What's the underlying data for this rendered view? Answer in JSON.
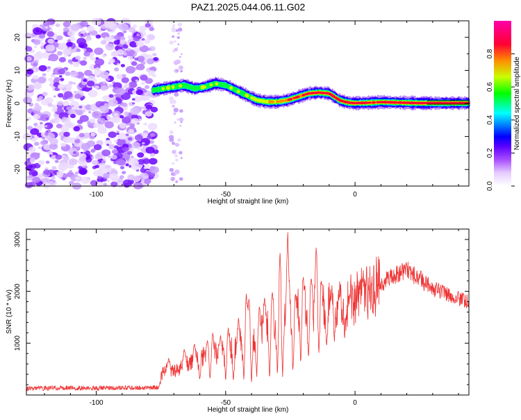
{
  "title": "PAZ1.2025.044.06.11.G02",
  "chart_data": [
    {
      "type": "heatmap",
      "xlabel": "Height of straight line (km)",
      "ylabel": "Frequency (Hz)",
      "xlim": [
        -127,
        44
      ],
      "ylim": [
        -25,
        25
      ],
      "xticks": [
        -100,
        -50,
        0
      ],
      "yticks": [
        -20,
        -10,
        0,
        10,
        20
      ],
      "colorbar": {
        "label": "Normalized spectral amplitude",
        "range": [
          0,
          1
        ],
        "ticks": [
          "0.0",
          "0.2",
          "0.4",
          "0.6",
          "0.8"
        ]
      },
      "colormap": [
        "#ffffff",
        "#e8d0ff",
        "#b066ff",
        "#7a00ff",
        "#0000ff",
        "#00e5ff",
        "#00ff00",
        "#c8ff00",
        "#ff8c00",
        "#ff0033",
        "#ff00aa"
      ],
      "noise_region_x": [
        -127,
        -77
      ],
      "ridge": {
        "x": [
          -78,
          -74,
          -70,
          -66,
          -62,
          -58,
          -54,
          -50,
          -46,
          -42,
          -38,
          -34,
          -30,
          -26,
          -22,
          -18,
          -14,
          -10,
          -8,
          -6,
          -4,
          -2,
          0,
          5,
          10,
          15,
          20,
          25,
          30,
          35,
          44
        ],
        "freq": [
          4.0,
          4.5,
          5.0,
          5.5,
          4.5,
          5.0,
          6.0,
          5.5,
          4.0,
          2.5,
          1.0,
          0.5,
          0.5,
          1.0,
          2.0,
          3.0,
          3.3,
          3.0,
          2.0,
          1.0,
          0.5,
          0.2,
          0.1,
          0.2,
          0.4,
          0.3,
          0.2,
          0.1,
          0.1,
          0.1,
          0.1
        ],
        "amplitude": [
          0.5,
          0.55,
          0.55,
          0.5,
          0.5,
          0.55,
          0.55,
          0.5,
          0.55,
          0.55,
          0.6,
          0.65,
          0.7,
          0.75,
          0.8,
          0.85,
          0.9,
          0.85,
          0.8,
          0.8,
          0.85,
          0.9,
          0.95,
          0.85,
          0.8,
          0.85,
          0.9,
          0.85,
          0.95,
          0.97,
          0.97
        ]
      }
    },
    {
      "type": "line",
      "xlabel": "Height of straight line (km)",
      "ylabel": "SNR (10 * v/v)",
      "xlim": [
        -127,
        44
      ],
      "ylim": [
        0,
        3200
      ],
      "xticks": [
        -100,
        -50,
        0
      ],
      "yticks": [
        1000,
        2000,
        3000
      ],
      "color": "#ee3333",
      "series": [
        {
          "x": [
            -127,
            -120,
            -110,
            -100,
            -90,
            -80,
            -76,
            -74,
            -70,
            -65,
            -60,
            -55,
            -50,
            -45,
            -40,
            -35,
            -30,
            -25,
            -20,
            -15,
            -10,
            -5,
            0,
            5,
            10,
            15,
            20,
            25,
            30,
            35,
            40,
            44
          ],
          "y": [
            120,
            130,
            140,
            130,
            135,
            140,
            150,
            500,
            450,
            600,
            700,
            800,
            850,
            950,
            1100,
            1250,
            1400,
            1550,
            1650,
            1700,
            1750,
            1750,
            1850,
            2000,
            2150,
            2300,
            2400,
            2250,
            2050,
            1950,
            1850,
            1800
          ]
        }
      ],
      "peaks": {
        "x": [
          -72,
          -66,
          -62,
          -57,
          -55,
          -52,
          -49,
          -45,
          -42,
          -41,
          -37,
          -35,
          -32,
          -29,
          -26,
          -23,
          -20,
          -17,
          -15,
          -13,
          -9,
          -6,
          -2,
          3
        ],
        "y": [
          720,
          900,
          1000,
          1050,
          1200,
          1150,
          1300,
          1500,
          2000,
          1900,
          1700,
          1900,
          2000,
          2800,
          3200,
          1950,
          2300,
          2250,
          2900,
          2200,
          2000,
          1900,
          1950,
          2200
        ]
      },
      "dips": {
        "x": [
          -60,
          -56,
          -50,
          -47,
          -43,
          -40,
          -38,
          -33,
          -30,
          -28,
          -24,
          -21,
          -18,
          -14,
          -11,
          -8,
          -4
        ],
        "y": [
          280,
          300,
          280,
          260,
          300,
          250,
          320,
          300,
          360,
          350,
          420,
          600,
          700,
          750,
          900,
          1000,
          1100
        ]
      }
    }
  ]
}
